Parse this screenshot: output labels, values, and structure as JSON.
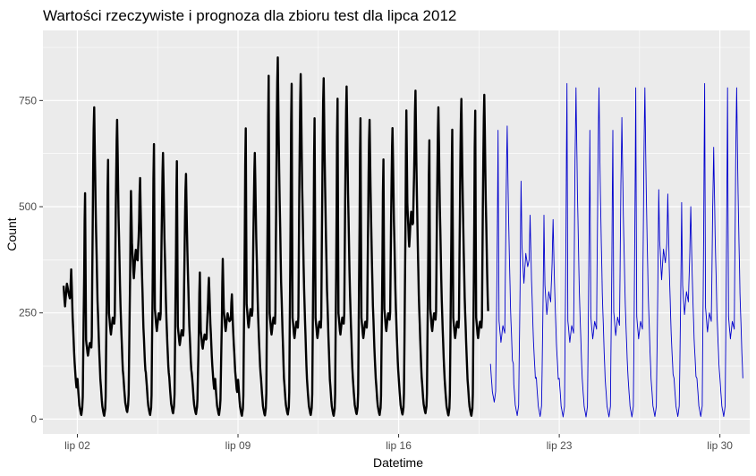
{
  "chart_data": {
    "type": "line",
    "title": "Wartości rzeczywiste i prognoza dla zbioru test dla lipca 2012",
    "xlabel": "Datetime",
    "ylabel": "Count",
    "x_ticks": [
      "lip 02",
      "lip 09",
      "lip 16",
      "lip 23",
      "lip 30"
    ],
    "x_tick_days": [
      2,
      9,
      16,
      23,
      30
    ],
    "y_ticks": [
      0,
      250,
      500,
      750
    ],
    "xlim_days": [
      0.5,
      31.3
    ],
    "ylim": [
      -35,
      915
    ],
    "grid": true,
    "background": "#ebebeb",
    "series": [
      {
        "color": "#000000",
        "day_range": [
          1.4,
          19.9
        ],
        "daily_peaks": [
          [
            440,
            360,
            320,
            5
          ],
          [
            570,
            750,
            180,
            8
          ],
          [
            650,
            720,
            240,
            6
          ],
          [
            550,
            580,
            400,
            15
          ],
          [
            690,
            640,
            250,
            8
          ],
          [
            650,
            590,
            210,
            12
          ],
          [
            360,
            340,
            200,
            10
          ],
          [
            390,
            300,
            250,
            8
          ],
          [
            730,
            640,
            260,
            6
          ],
          [
            870,
            870,
            240,
            7
          ],
          [
            850,
            830,
            230,
            9
          ],
          [
            760,
            820,
            230,
            8
          ],
          [
            810,
            800,
            240,
            6
          ],
          [
            760,
            720,
            230,
            10
          ],
          [
            650,
            700,
            250,
            8
          ],
          [
            750,
            790,
            490,
            9
          ],
          [
            700,
            750,
            250,
            12
          ],
          [
            730,
            770,
            230,
            7
          ],
          [
            780,
            780,
            230,
            6
          ]
        ]
      },
      {
        "color": "#0000cd",
        "day_range": [
          20.0,
          31.0
        ],
        "daily_peaks": [
          [
            680,
            690,
            220,
            40
          ],
          [
            560,
            480,
            390,
            8
          ],
          [
            480,
            470,
            300,
            6
          ],
          [
            790,
            780,
            220,
            5
          ],
          [
            680,
            780,
            230,
            5
          ],
          [
            680,
            710,
            240,
            5
          ],
          [
            780,
            780,
            230,
            5
          ],
          [
            540,
            530,
            400,
            6
          ],
          [
            510,
            500,
            300,
            6
          ],
          [
            790,
            640,
            250,
            6
          ],
          [
            780,
            780,
            230,
            6
          ]
        ]
      }
    ]
  }
}
